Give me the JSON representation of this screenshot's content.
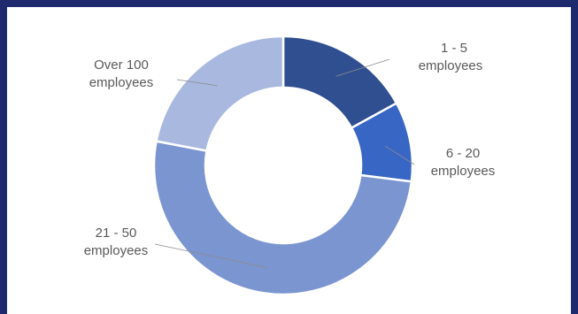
{
  "chart_data": {
    "type": "pie",
    "variant": "donut",
    "categories": [
      "1 - 5 employees",
      "6 - 20 employees",
      "21 - 50 employees",
      "Over 100 employees"
    ],
    "values": [
      17,
      10,
      51,
      22
    ],
    "colors": [
      "#2f4f91",
      "#3866c4",
      "#7b95d1",
      "#a8b8df"
    ],
    "labels": [
      {
        "line1": "1 - 5",
        "line2": "employees"
      },
      {
        "line1": "6 - 20",
        "line2": "employees"
      },
      {
        "line1": "21 - 50",
        "line2": "employees"
      },
      {
        "line1": "Over 100",
        "line2": "employees"
      }
    ],
    "title": "",
    "legend": "none"
  },
  "frame_color": "#1f2a6e"
}
